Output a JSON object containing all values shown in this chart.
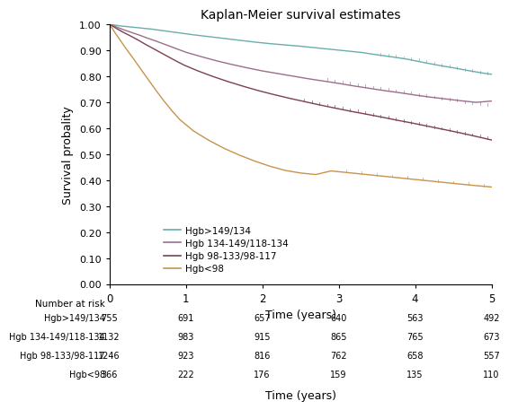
{
  "title": "Kaplan-Meier survival estimates",
  "xlabel": "Time (years)",
  "ylabel": "Survival probality",
  "xlim": [
    0,
    5
  ],
  "ylim": [
    0.0,
    1.0
  ],
  "yticks": [
    0.0,
    0.1,
    0.2,
    0.3,
    0.4,
    0.5,
    0.6,
    0.7,
    0.8,
    0.9,
    1.0
  ],
  "xticks": [
    0,
    1,
    2,
    3,
    4,
    5
  ],
  "curves": [
    {
      "label": "Hgb>149/134",
      "color": "#6aada9",
      "end_y": 0.808,
      "points_x": [
        0.0,
        0.08,
        0.15,
        0.25,
        0.35,
        0.45,
        0.55,
        0.65,
        0.75,
        0.85,
        0.95,
        1.1,
        1.3,
        1.5,
        1.7,
        1.9,
        2.1,
        2.3,
        2.5,
        2.7,
        2.9,
        3.1,
        3.3,
        3.5,
        3.7,
        3.9,
        4.1,
        4.3,
        4.5,
        4.7,
        4.9,
        5.0
      ],
      "points_y": [
        1.0,
        0.997,
        0.994,
        0.991,
        0.988,
        0.985,
        0.982,
        0.978,
        0.974,
        0.97,
        0.966,
        0.96,
        0.953,
        0.946,
        0.939,
        0.932,
        0.926,
        0.921,
        0.916,
        0.91,
        0.904,
        0.898,
        0.892,
        0.883,
        0.875,
        0.866,
        0.854,
        0.843,
        0.833,
        0.822,
        0.812,
        0.808
      ]
    },
    {
      "label": "Hgb 134-149/118-134",
      "color": "#9b6e8c",
      "end_y": 0.705,
      "points_x": [
        0.0,
        0.06,
        0.12,
        0.2,
        0.3,
        0.4,
        0.5,
        0.6,
        0.7,
        0.8,
        0.9,
        1.0,
        1.2,
        1.4,
        1.6,
        1.8,
        2.0,
        2.2,
        2.4,
        2.6,
        2.8,
        3.0,
        3.2,
        3.4,
        3.6,
        3.8,
        4.0,
        4.2,
        4.4,
        4.6,
        4.8,
        5.0
      ],
      "points_y": [
        1.0,
        0.994,
        0.987,
        0.978,
        0.968,
        0.958,
        0.947,
        0.937,
        0.926,
        0.915,
        0.904,
        0.893,
        0.876,
        0.86,
        0.846,
        0.833,
        0.821,
        0.811,
        0.801,
        0.791,
        0.782,
        0.773,
        0.763,
        0.754,
        0.745,
        0.737,
        0.728,
        0.72,
        0.713,
        0.706,
        0.7,
        0.705
      ]
    },
    {
      "label": "Hgb 98-133/98-117",
      "color": "#7d3f50",
      "end_y": 0.555,
      "points_x": [
        0.0,
        0.05,
        0.1,
        0.18,
        0.28,
        0.38,
        0.48,
        0.58,
        0.68,
        0.78,
        0.88,
        0.98,
        1.15,
        1.35,
        1.55,
        1.75,
        1.95,
        2.15,
        2.35,
        2.55,
        2.75,
        2.95,
        3.15,
        3.35,
        3.55,
        3.75,
        3.95,
        4.15,
        4.35,
        4.55,
        4.75,
        5.0
      ],
      "points_y": [
        1.0,
        0.992,
        0.983,
        0.97,
        0.955,
        0.939,
        0.922,
        0.906,
        0.89,
        0.874,
        0.858,
        0.843,
        0.822,
        0.8,
        0.78,
        0.762,
        0.745,
        0.73,
        0.716,
        0.703,
        0.69,
        0.678,
        0.666,
        0.655,
        0.644,
        0.632,
        0.621,
        0.609,
        0.597,
        0.585,
        0.572,
        0.555
      ]
    },
    {
      "label": "Hgb<98",
      "color": "#c8934c",
      "end_y": 0.374,
      "points_x": [
        0.0,
        0.04,
        0.08,
        0.14,
        0.22,
        0.32,
        0.42,
        0.52,
        0.62,
        0.72,
        0.82,
        0.92,
        1.1,
        1.3,
        1.5,
        1.7,
        1.9,
        2.1,
        2.3,
        2.5,
        2.7,
        2.9,
        3.1,
        3.3,
        3.5,
        3.7,
        3.9,
        4.1,
        4.3,
        4.5,
        4.7,
        5.0
      ],
      "points_y": [
        1.0,
        0.984,
        0.965,
        0.94,
        0.906,
        0.866,
        0.824,
        0.783,
        0.742,
        0.703,
        0.667,
        0.634,
        0.59,
        0.554,
        0.523,
        0.497,
        0.474,
        0.454,
        0.438,
        0.428,
        0.422,
        0.436,
        0.43,
        0.424,
        0.418,
        0.412,
        0.406,
        0.4,
        0.394,
        0.388,
        0.382,
        0.374
      ]
    }
  ],
  "censoring": [
    {
      "curve_idx": 0,
      "color": "#6aada9",
      "x": [
        3.55,
        3.65,
        3.75,
        3.85,
        3.95,
        4.05,
        4.15,
        4.25,
        4.35,
        4.45,
        4.55,
        4.65,
        4.75,
        4.85,
        4.95
      ],
      "y": [
        0.879,
        0.876,
        0.872,
        0.868,
        0.863,
        0.858,
        0.852,
        0.846,
        0.84,
        0.834,
        0.828,
        0.822,
        0.817,
        0.812,
        0.807
      ]
    },
    {
      "curve_idx": 1,
      "color": "#9b6e8c",
      "x": [
        2.85,
        2.95,
        3.05,
        3.15,
        3.25,
        3.35,
        3.45,
        3.55,
        3.65,
        3.75,
        3.85,
        3.95,
        4.05,
        4.15,
        4.25,
        4.35,
        4.45,
        4.55,
        4.65,
        4.75,
        4.85,
        4.95
      ],
      "y": [
        0.782,
        0.777,
        0.773,
        0.768,
        0.763,
        0.758,
        0.754,
        0.749,
        0.744,
        0.74,
        0.735,
        0.73,
        0.726,
        0.721,
        0.716,
        0.712,
        0.707,
        0.703,
        0.698,
        0.694,
        0.69,
        0.686
      ]
    },
    {
      "curve_idx": 2,
      "color": "#7d3f50",
      "x": [
        2.55,
        2.65,
        2.75,
        2.85,
        2.95,
        3.05,
        3.15,
        3.25,
        3.35,
        3.45,
        3.55,
        3.65,
        3.75,
        3.85,
        3.95,
        4.05,
        4.15,
        4.25,
        4.35,
        4.45,
        4.55,
        4.65,
        4.75,
        4.85,
        4.95
      ],
      "y": [
        0.703,
        0.697,
        0.691,
        0.685,
        0.679,
        0.673,
        0.667,
        0.661,
        0.655,
        0.649,
        0.643,
        0.637,
        0.631,
        0.625,
        0.619,
        0.613,
        0.607,
        0.601,
        0.595,
        0.589,
        0.583,
        0.577,
        0.571,
        0.565,
        0.559
      ]
    },
    {
      "curve_idx": 3,
      "color": "#c8934c",
      "x": [
        3.1,
        3.3,
        3.5,
        3.7,
        3.9,
        4.1,
        4.3,
        4.5,
        4.7,
        4.9
      ],
      "y": [
        0.43,
        0.424,
        0.418,
        0.412,
        0.406,
        0.4,
        0.394,
        0.388,
        0.382,
        0.376
      ]
    }
  ],
  "legend_labels": [
    "Hgb>149/134",
    "Hgb 134-149/118-134",
    "Hgb 98-133/98-117",
    "Hgb<98"
  ],
  "legend_colors": [
    "#6aada9",
    "#9b6e8c",
    "#7d3f50",
    "#c8934c"
  ],
  "risk_table": {
    "header": "Number at risk",
    "rows": [
      {
        "label": "Hgb>149/134",
        "values": [
          755,
          691,
          657,
          640,
          563,
          492
        ]
      },
      {
        "label": "Hgb 134-149/118-134",
        "values": [
          1132,
          983,
          915,
          865,
          765,
          673
        ]
      },
      {
        "label": "Hgb 98-133/98-117",
        "values": [
          1246,
          923,
          816,
          762,
          658,
          557
        ]
      },
      {
        "label": "Hgb<98",
        "values": [
          366,
          222,
          176,
          159,
          135,
          110
        ]
      }
    ],
    "times": [
      0,
      1,
      2,
      3,
      4,
      5
    ]
  }
}
